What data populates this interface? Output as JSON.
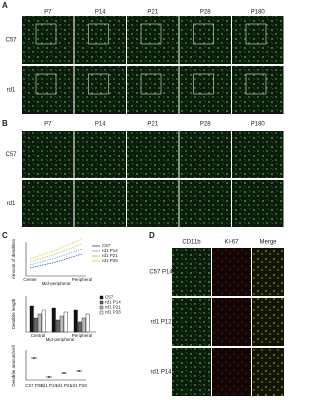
{
  "panel_a": {
    "label": "A",
    "columns": [
      "P7",
      "P14",
      "P21",
      "P28",
      "P180"
    ],
    "rows": [
      "C57",
      "rd1"
    ]
  },
  "panel_b": {
    "label": "B",
    "columns": [
      "P7",
      "P14",
      "P21",
      "P28",
      "P180"
    ],
    "rows": [
      "C57",
      "rd1"
    ]
  },
  "panel_c": {
    "label": "C",
    "top": {
      "y_label": "Amount of dendrites",
      "x_labels": [
        "Center",
        "Mid-peripheral",
        "Peripheral"
      ],
      "legend": [
        "C57",
        "rd1 P14",
        "rd1 P21",
        "rd1 P28"
      ]
    },
    "middle": {
      "y_label": "Dendrite length",
      "x_labels": [
        "Central",
        "Mid-peripheral",
        "Peripheral"
      ],
      "legend": [
        "C57",
        "rd1 P14",
        "rd1 P21",
        "rd1 P28"
      ]
    },
    "bottom": {
      "y_label": "Dendrite amount/cell",
      "x_labels": [
        "C57 P28",
        "rd1 P14",
        "rd1 P21",
        "rd1 P28"
      ]
    }
  },
  "panel_d": {
    "label": "D",
    "columns": [
      "CD11b",
      "Ki-67",
      "Merge"
    ],
    "rows": [
      "C57 P14",
      "rd1 P12",
      "rd1 P14"
    ]
  }
}
